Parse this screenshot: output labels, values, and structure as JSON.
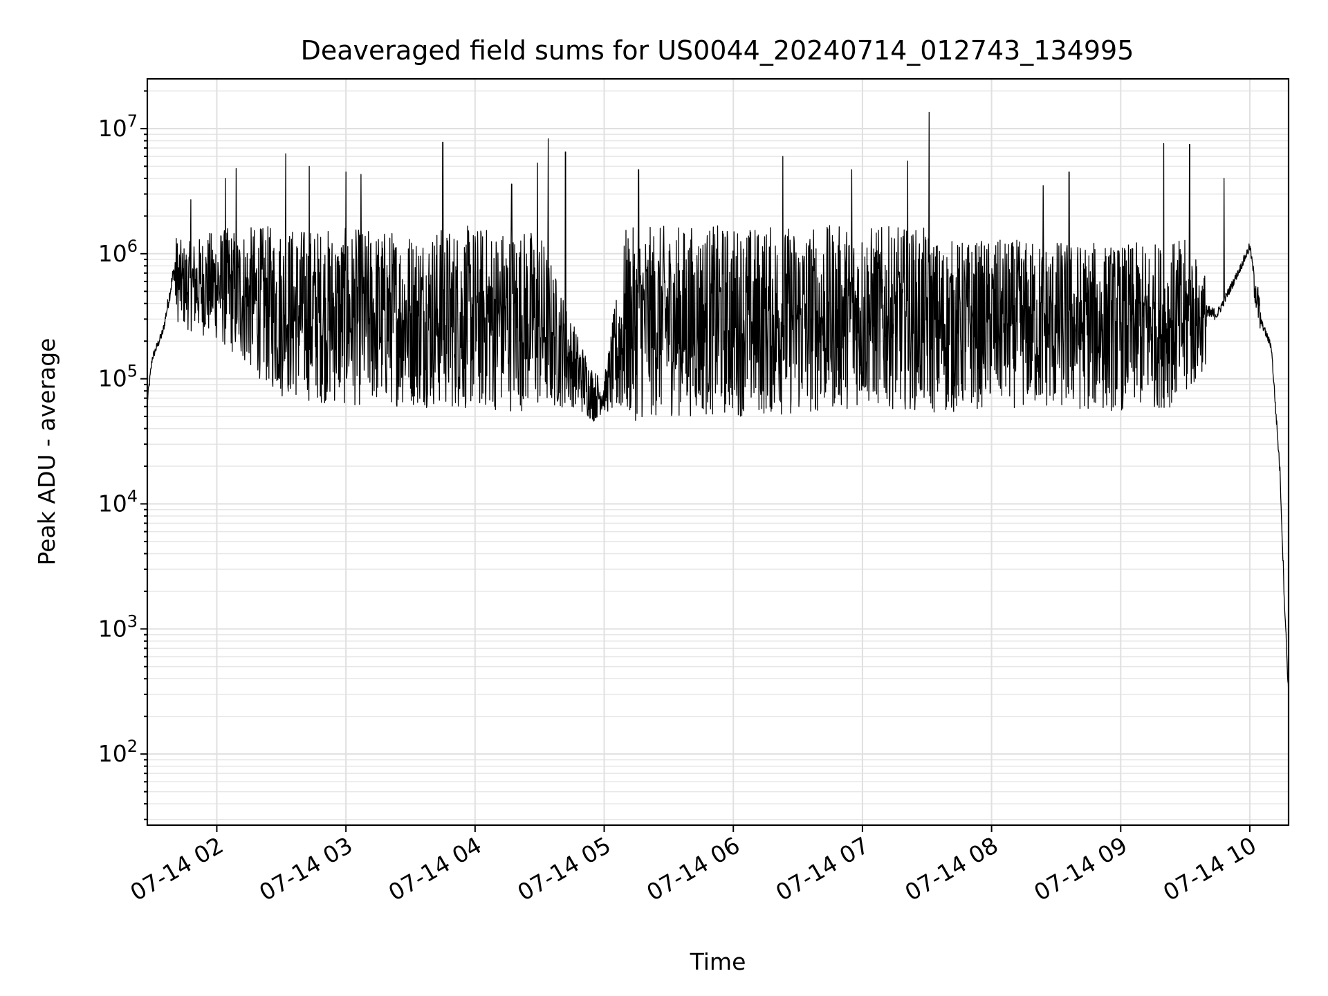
{
  "chart_data": {
    "type": "line",
    "title": "Deaveraged field sums for US0044_20240714_012743_134995",
    "xlabel": "Time",
    "ylabel": "Peak ADU - average",
    "yscale": "log",
    "ylim": [
      27,
      25000000
    ],
    "xlim": [
      "2024-07-14 01:27:43",
      "2024-07-14 10:18:00"
    ],
    "grid": "on (major and minor)",
    "x_tick_labels": [
      "07-14 02",
      "07-14 03",
      "07-14 04",
      "07-14 05",
      "07-14 06",
      "07-14 07",
      "07-14 08",
      "07-14 09",
      "07-14 10"
    ],
    "y_tick_labels": [
      {
        "base": "10",
        "exp": "2",
        "value": 100
      },
      {
        "base": "10",
        "exp": "3",
        "value": 1000
      },
      {
        "base": "10",
        "exp": "4",
        "value": 10000
      },
      {
        "base": "10",
        "exp": "5",
        "value": 100000
      },
      {
        "base": "10",
        "exp": "6",
        "value": 1000000
      },
      {
        "base": "10",
        "exp": "7",
        "value": 10000000
      }
    ],
    "series": [
      {
        "color": "#000000",
        "description_envelope": {
          "x": [
            "2024-07-14 01:27:43",
            "2024-07-14 01:30",
            "2024-07-14 01:35",
            "2024-07-14 01:40",
            "2024-07-14 01:45",
            "2024-07-14 02:00",
            "2024-07-14 02:30",
            "2024-07-14 03:00",
            "2024-07-14 03:30",
            "2024-07-14 04:00",
            "2024-07-14 04:30",
            "2024-07-14 04:45",
            "2024-07-14 04:55",
            "2024-07-14 05:00",
            "2024-07-14 05:10",
            "2024-07-14 05:30",
            "2024-07-14 06:00",
            "2024-07-14 06:30",
            "2024-07-14 07:00",
            "2024-07-14 07:30",
            "2024-07-14 07:35",
            "2024-07-14 08:00",
            "2024-07-14 08:30",
            "2024-07-14 09:00",
            "2024-07-14 09:30",
            "2024-07-14 09:45",
            "2024-07-14 09:55",
            "2024-07-14 10:00",
            "2024-07-14 10:05",
            "2024-07-14 10:10",
            "2024-07-14 10:14",
            "2024-07-14 10:16",
            "2024-07-14 10:18"
          ],
          "low": [
            40000,
            100000,
            150000,
            300000,
            250000,
            200000,
            70000,
            60000,
            60000,
            55000,
            55000,
            60000,
            45000,
            55000,
            45000,
            50000,
            50000,
            50000,
            60000,
            55000,
            50000,
            60000,
            55000,
            55000,
            60000,
            200000,
            500000,
            700000,
            200000,
            120000,
            10000,
            1000,
            150
          ],
          "high": [
            100000,
            200000,
            350000,
            1500000,
            1200000,
            1600000,
            1700000,
            1600000,
            1600000,
            1700000,
            1600000,
            300000,
            120000,
            100000,
            1600000,
            1700000,
            1700000,
            1700000,
            1700000,
            1600000,
            1300000,
            1300000,
            1300000,
            1200000,
            1300000,
            500000,
            1000000,
            1700000,
            400000,
            250000,
            30000,
            3000,
            500
          ]
        },
        "spikes": [
          {
            "x": "2024-07-14 01:48",
            "y": 2700000
          },
          {
            "x": "2024-07-14 02:04",
            "y": 4000000
          },
          {
            "x": "2024-07-14 02:09",
            "y": 4800000
          },
          {
            "x": "2024-07-14 02:32",
            "y": 6300000
          },
          {
            "x": "2024-07-14 02:43",
            "y": 5000000
          },
          {
            "x": "2024-07-14 03:00",
            "y": 4500000
          },
          {
            "x": "2024-07-14 03:07",
            "y": 4300000
          },
          {
            "x": "2024-07-14 03:45",
            "y": 7800000
          },
          {
            "x": "2024-07-14 04:17",
            "y": 3600000
          },
          {
            "x": "2024-07-14 04:29",
            "y": 5300000
          },
          {
            "x": "2024-07-14 04:34",
            "y": 8300000
          },
          {
            "x": "2024-07-14 04:42",
            "y": 6500000
          },
          {
            "x": "2024-07-14 05:16",
            "y": 4700000
          },
          {
            "x": "2024-07-14 06:23",
            "y": 6000000
          },
          {
            "x": "2024-07-14 06:55",
            "y": 4700000
          },
          {
            "x": "2024-07-14 07:21",
            "y": 5500000
          },
          {
            "x": "2024-07-14 07:31",
            "y": 13500000
          },
          {
            "x": "2024-07-14 08:24",
            "y": 3500000
          },
          {
            "x": "2024-07-14 08:36",
            "y": 4500000
          },
          {
            "x": "2024-07-14 09:20",
            "y": 7600000
          },
          {
            "x": "2024-07-14 09:32",
            "y": 7500000
          },
          {
            "x": "2024-07-14 09:48",
            "y": 4000000
          }
        ]
      }
    ]
  }
}
